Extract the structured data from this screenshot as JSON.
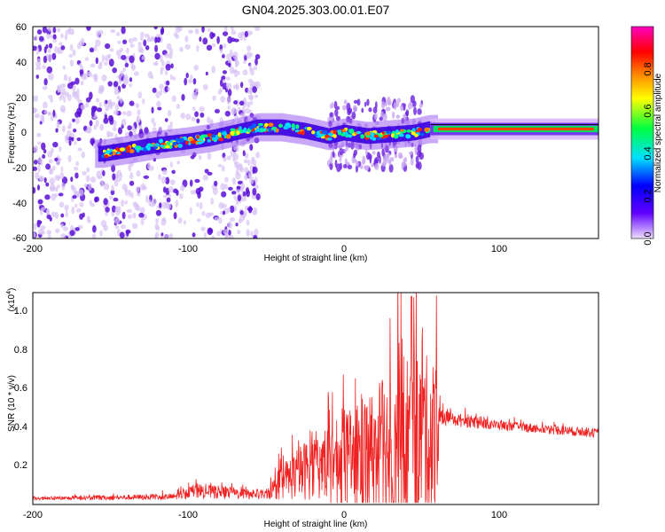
{
  "title": "GN04.2025.303.00.01.E07",
  "colors": {
    "snr_line": "#ee2222",
    "frame": "#000000",
    "speckle_light": "#d7c2f5",
    "speckle_dark": "#5a10d8"
  },
  "chart_data": [
    {
      "type": "heatmap",
      "title": "GN04.2025.303.00.01.E07",
      "xlabel": "Height of straight line (km)",
      "ylabel": "Frequency (Hz)",
      "xlim": [
        -200,
        163
      ],
      "ylim": [
        -60,
        60
      ],
      "x_ticks": [
        "-200",
        "-100",
        "0",
        "100"
      ],
      "y_ticks": [
        "-60",
        "-40",
        "-20",
        "0",
        "20",
        "40",
        "60"
      ],
      "ridge": [
        {
          "x": -155,
          "y": -12
        },
        {
          "x": -140,
          "y": -10
        },
        {
          "x": -120,
          "y": -7
        },
        {
          "x": -100,
          "y": -5
        },
        {
          "x": -85,
          "y": -3
        },
        {
          "x": -70,
          "y": 0
        },
        {
          "x": -55,
          "y": 3
        },
        {
          "x": -40,
          "y": 3
        },
        {
          "x": -25,
          "y": 1
        },
        {
          "x": -10,
          "y": -2
        },
        {
          "x": 0,
          "y": 0
        },
        {
          "x": 15,
          "y": -2
        },
        {
          "x": 30,
          "y": -1
        },
        {
          "x": 45,
          "y": 0
        },
        {
          "x": 55,
          "y": 2
        },
        {
          "x": 163,
          "y": 2
        }
      ],
      "colorbar": {
        "label": "Normalized spectral amplitude",
        "range": [
          0,
          1
        ],
        "ticks": [
          "0.0",
          "0.2",
          "0.4",
          "0.6",
          "0.8"
        ],
        "colormap": [
          "#f0e0ff",
          "#6000ff",
          "#0000ff",
          "#00e0ff",
          "#00ff40",
          "#ffff00",
          "#ff8000",
          "#ff0000",
          "#ff00c0"
        ]
      }
    },
    {
      "type": "line",
      "xlabel": "Height of straight line (km)",
      "ylabel": "SNR (10 * v/v)",
      "y_multiplier": "(x10",
      "y_multiplier_exp": "4",
      "xlim": [
        -200,
        163
      ],
      "ylim": [
        0,
        1.1
      ],
      "x_ticks": [
        "-200",
        "-100",
        "0",
        "100"
      ],
      "y_ticks": [
        "0.2",
        "0.4",
        "0.6",
        "0.8",
        "1.0"
      ],
      "envelope": [
        {
          "x": -200,
          "base": 0.03,
          "amp": 0.01
        },
        {
          "x": -110,
          "base": 0.04,
          "amp": 0.02
        },
        {
          "x": -95,
          "base": 0.07,
          "amp": 0.05
        },
        {
          "x": -75,
          "base": 0.06,
          "amp": 0.04
        },
        {
          "x": -50,
          "base": 0.05,
          "amp": 0.03
        },
        {
          "x": -40,
          "base": 0.12,
          "amp": 0.12
        },
        {
          "x": -20,
          "base": 0.2,
          "amp": 0.22
        },
        {
          "x": 0,
          "base": 0.22,
          "amp": 0.3
        },
        {
          "x": 20,
          "base": 0.28,
          "amp": 0.45
        },
        {
          "x": 40,
          "base": 0.3,
          "amp": 0.65
        },
        {
          "x": 60,
          "base": 0.35,
          "amp": 0.5
        },
        {
          "x": 62,
          "base": 0.45,
          "amp": 0.05
        },
        {
          "x": 100,
          "base": 0.41,
          "amp": 0.03
        },
        {
          "x": 163,
          "base": 0.37,
          "amp": 0.03
        }
      ],
      "peak": {
        "x": 43,
        "y": 1.08
      }
    }
  ]
}
